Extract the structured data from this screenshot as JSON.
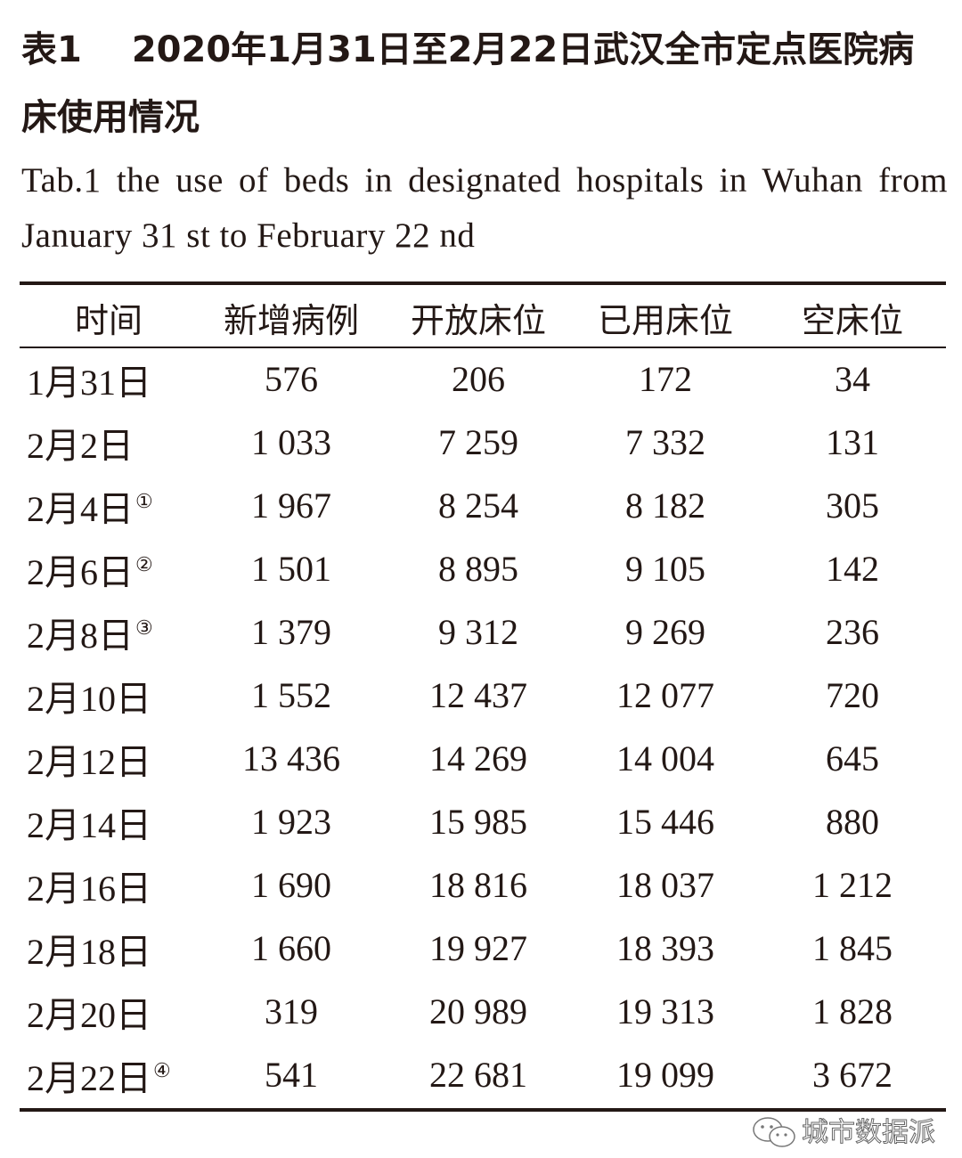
{
  "title": {
    "label": "表1",
    "text": "2020年1月31日至2月22日武汉全市定点医院病床使用情况"
  },
  "title_en": "Tab.1 the use of beds in designated hospitals in Wuhan from January 31 st to February 22 nd",
  "table": {
    "headers": [
      "时间",
      "新增病例",
      "开放床位",
      "已用床位",
      "空床位"
    ],
    "rows": [
      {
        "date": "1月31日",
        "note": "",
        "cells": [
          "576",
          "206",
          "172",
          "34"
        ]
      },
      {
        "date": "2月2日",
        "note": "",
        "cells": [
          "1 033",
          "7 259",
          "7 332",
          "131"
        ]
      },
      {
        "date": "2月4日",
        "note": "①",
        "cells": [
          "1 967",
          "8 254",
          "8 182",
          "305"
        ]
      },
      {
        "date": "2月6日",
        "note": "②",
        "cells": [
          "1 501",
          "8 895",
          "9 105",
          "142"
        ]
      },
      {
        "date": "2月8日",
        "note": "③",
        "cells": [
          "1 379",
          "9 312",
          "9 269",
          "236"
        ]
      },
      {
        "date": "2月10日",
        "note": "",
        "cells": [
          "1 552",
          "12 437",
          "12 077",
          "720"
        ]
      },
      {
        "date": "2月12日",
        "note": "",
        "cells": [
          "13 436",
          "14 269",
          "14 004",
          "645"
        ]
      },
      {
        "date": "2月14日",
        "note": "",
        "cells": [
          "1 923",
          "15 985",
          "15 446",
          "880"
        ]
      },
      {
        "date": "2月16日",
        "note": "",
        "cells": [
          "1 690",
          "18 816",
          "18 037",
          "1 212"
        ]
      },
      {
        "date": "2月18日",
        "note": "",
        "cells": [
          "1 660",
          "19 927",
          "18 393",
          "1 845"
        ]
      },
      {
        "date": "2月20日",
        "note": "",
        "cells": [
          "319",
          "20 989",
          "19 313",
          "1 828"
        ]
      },
      {
        "date": "2月22日",
        "note": "④",
        "cells": [
          "541",
          "22 681",
          "19 099",
          "3 672"
        ]
      }
    ]
  },
  "watermark": {
    "text": "城市数据派",
    "icon": "wechat-icon"
  }
}
